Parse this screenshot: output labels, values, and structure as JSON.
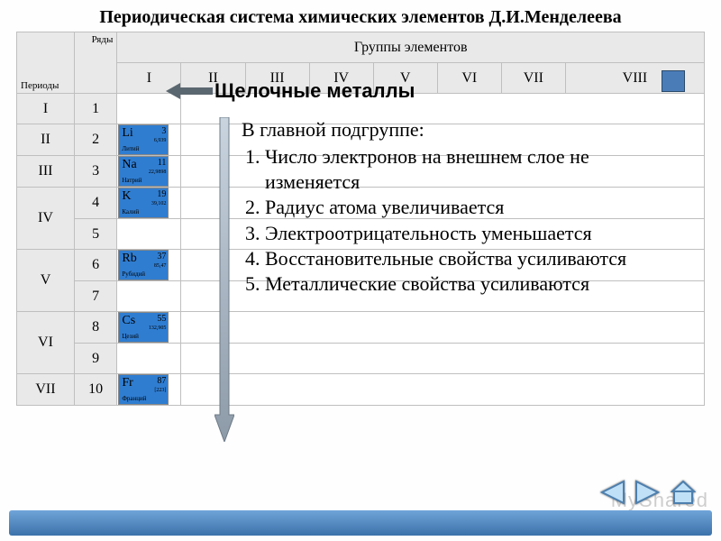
{
  "title": "Периодическая система химических элементов Д.И.Менделеева",
  "corner": {
    "periods": "Периоды",
    "rows": "Ряды"
  },
  "group_header": "Группы элементов",
  "groups": [
    "I",
    "II",
    "III",
    "IV",
    "V",
    "VI",
    "VII",
    "VIII"
  ],
  "period_rows": [
    {
      "period": "I",
      "rows": [
        "1"
      ]
    },
    {
      "period": "II",
      "rows": [
        "2"
      ]
    },
    {
      "period": "III",
      "rows": [
        "3"
      ]
    },
    {
      "period": "IV",
      "rows": [
        "4",
        "5"
      ]
    },
    {
      "period": "V",
      "rows": [
        "6",
        "7"
      ]
    },
    {
      "period": "VI",
      "rows": [
        "8",
        "9"
      ]
    },
    {
      "period": "VII",
      "rows": [
        "10"
      ]
    }
  ],
  "elements": [
    {
      "row": "2",
      "symbol": "Li",
      "number": "3",
      "mass": "6,939",
      "name": "Литий"
    },
    {
      "row": "3",
      "symbol": "Na",
      "number": "11",
      "mass": "22,9898",
      "name": "Натрий"
    },
    {
      "row": "4",
      "symbol": "K",
      "number": "19",
      "mass": "39,102",
      "name": "Калий"
    },
    {
      "row": "6",
      "symbol": "Rb",
      "number": "37",
      "mass": "85,47",
      "name": "Рубидий"
    },
    {
      "row": "8",
      "symbol": "Cs",
      "number": "55",
      "mass": "132,905",
      "name": "Цезий"
    },
    {
      "row": "10",
      "symbol": "Fr",
      "number": "87",
      "mass": "[223]",
      "name": "Франций"
    }
  ],
  "subtitle": "Щелочные металлы",
  "list_title": "В главной подгруппе:",
  "list_items": [
    "Число электронов на внешнем слое  не изменяется",
    "Радиус атома увеличивается",
    "Электроотрицательность уменьшается",
    "Восстановительные свойства усиливаются",
    "Металлические свойства усиливаются"
  ],
  "style": {
    "element_bg": "#2f7dd1",
    "header_bg": "#e9e9e9",
    "arrow_fill": "#5b6770",
    "downarrow_stroke": "#6d7a86",
    "downarrow_fill": "#b7c3cf",
    "bottom_bar_from": "#6fa4d8",
    "bottom_bar_to": "#3c72aa",
    "nav_fill": "#bfe0f7",
    "nav_stroke": "#4d7fae"
  },
  "watermark": "MyShared"
}
